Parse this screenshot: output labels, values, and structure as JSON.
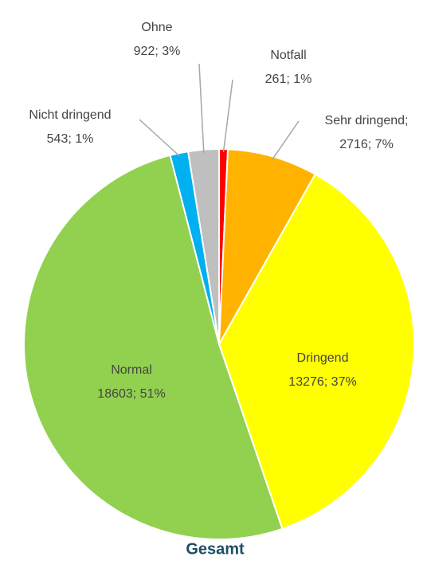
{
  "chart_data": {
    "type": "pie",
    "title": "Gesamt",
    "categories": [
      "Notfall",
      "Sehr dringend;",
      "Dringend",
      "Normal",
      "Nicht dringend",
      "Ohne"
    ],
    "values": [
      261,
      2716,
      13276,
      18603,
      543,
      922
    ],
    "value_labels": [
      "261; 1%",
      "2716; 7%",
      "13276; 37%",
      "18603; 51%",
      "543; 1%",
      "922; 3%"
    ],
    "colors": [
      "#ff0000",
      "#ffb300",
      "#ffff00",
      "#92d050",
      "#00b0f0",
      "#bfbfbf"
    ]
  }
}
